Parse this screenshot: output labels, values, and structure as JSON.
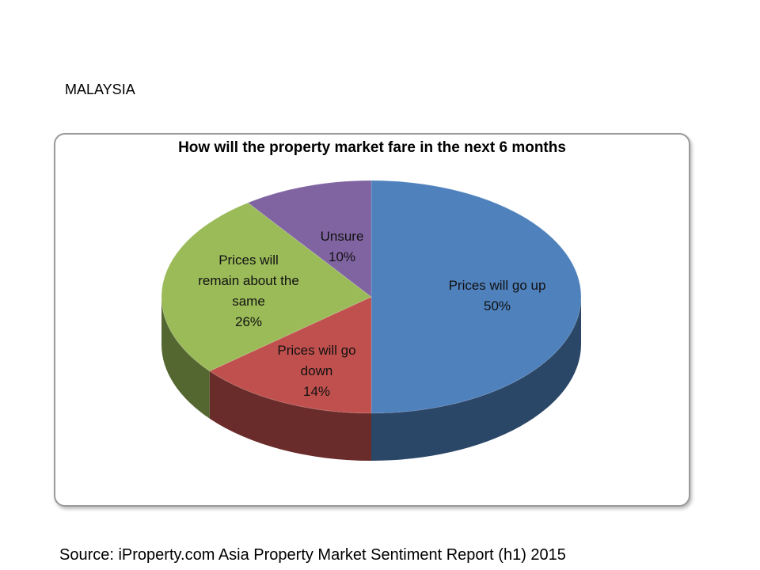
{
  "header": {
    "title": "MALAYSIA"
  },
  "chart_data": {
    "type": "pie",
    "title": "How will the property market fare in the next 6 months",
    "categories": [
      "Prices will go up",
      "Prices will go down",
      "Prices will remain about the same",
      "Unsure"
    ],
    "values": [
      50,
      14,
      26,
      10
    ],
    "value_labels": [
      "50%",
      "14%",
      "26%",
      "10%"
    ],
    "colors": [
      "#4f81bd",
      "#c0504d",
      "#9bbb59",
      "#8064a2"
    ]
  },
  "footer": {
    "source": "Source: iProperty.com Asia Property Market Sentiment Report (h1) 2015"
  }
}
